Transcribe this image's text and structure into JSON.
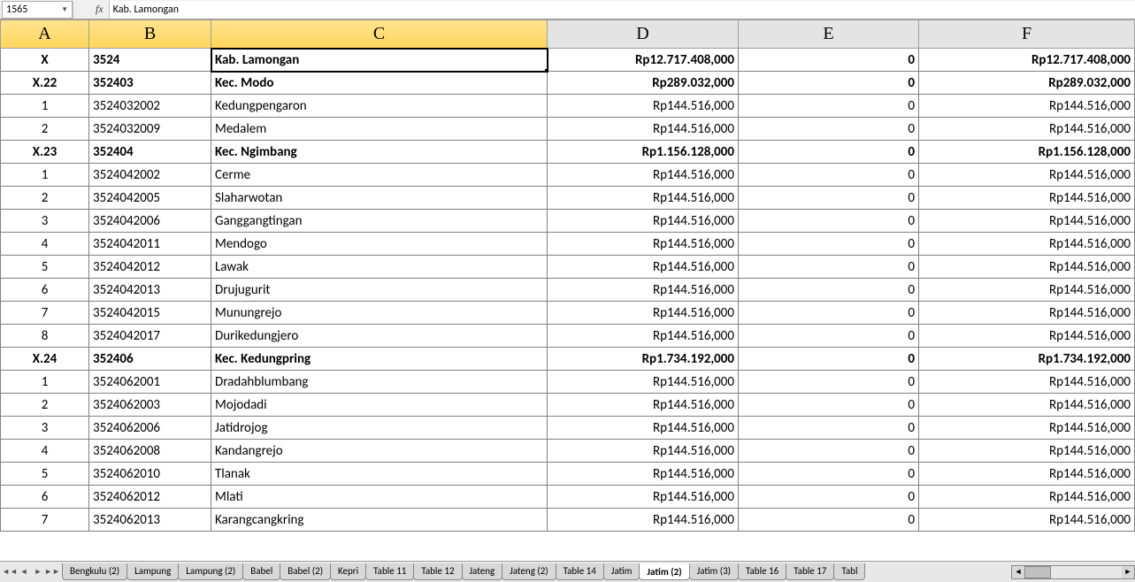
{
  "formula_bar": {
    "name_box": "1565",
    "fx_label": "fx",
    "value": "Kab.  Lamongan"
  },
  "columns": [
    "A",
    "B",
    "C",
    "D",
    "E",
    "F"
  ],
  "col_widths": {
    "A": 100,
    "B": 138,
    "C": 380,
    "D": 216,
    "E": 204,
    "F": 244
  },
  "active_cell": "C1",
  "selected_col": "C",
  "rows": [
    {
      "bold": true,
      "a": "X",
      "b": "3524",
      "c": "Kab.  Lamongan",
      "d": "Rp12.717.408,000",
      "e": "0",
      "f": "Rp12.717.408,000"
    },
    {
      "bold": true,
      "a": "X.22",
      "b": "352403",
      "c": "Kec.  Modo",
      "d": "Rp289.032,000",
      "e": "0",
      "f": "Rp289.032,000"
    },
    {
      "bold": false,
      "a": "1",
      "b": "3524032002",
      "c": "Kedungpengaron",
      "d": "Rp144.516,000",
      "e": "0",
      "f": "Rp144.516,000"
    },
    {
      "bold": false,
      "a": "2",
      "b": "3524032009",
      "c": "Medalem",
      "d": "Rp144.516,000",
      "e": "0",
      "f": "Rp144.516,000"
    },
    {
      "bold": true,
      "a": "X.23",
      "b": "352404",
      "c": "Kec.  Ngimbang",
      "d": "Rp1.156.128,000",
      "e": "0",
      "f": "Rp1.156.128,000"
    },
    {
      "bold": false,
      "a": "1",
      "b": "3524042002",
      "c": "Cerme",
      "d": "Rp144.516,000",
      "e": "0",
      "f": "Rp144.516,000"
    },
    {
      "bold": false,
      "a": "2",
      "b": "3524042005",
      "c": "Slaharwotan",
      "d": "Rp144.516,000",
      "e": "0",
      "f": "Rp144.516,000"
    },
    {
      "bold": false,
      "a": "3",
      "b": "3524042006",
      "c": "Ganggangtingan",
      "d": "Rp144.516,000",
      "e": "0",
      "f": "Rp144.516,000"
    },
    {
      "bold": false,
      "a": "4",
      "b": "3524042011",
      "c": "Mendogo",
      "d": "Rp144.516,000",
      "e": "0",
      "f": "Rp144.516,000"
    },
    {
      "bold": false,
      "a": "5",
      "b": "3524042012",
      "c": "Lawak",
      "d": "Rp144.516,000",
      "e": "0",
      "f": "Rp144.516,000"
    },
    {
      "bold": false,
      "a": "6",
      "b": "3524042013",
      "c": "Drujugurit",
      "d": "Rp144.516,000",
      "e": "0",
      "f": "Rp144.516,000"
    },
    {
      "bold": false,
      "a": "7",
      "b": "3524042015",
      "c": "Munungrejo",
      "d": "Rp144.516,000",
      "e": "0",
      "f": "Rp144.516,000"
    },
    {
      "bold": false,
      "a": "8",
      "b": "3524042017",
      "c": "Durikedungjero",
      "d": "Rp144.516,000",
      "e": "0",
      "f": "Rp144.516,000"
    },
    {
      "bold": true,
      "a": "X.24",
      "b": "352406",
      "c": "Kec.  Kedungpring",
      "d": "Rp1.734.192,000",
      "e": "0",
      "f": "Rp1.734.192,000"
    },
    {
      "bold": false,
      "a": "1",
      "b": "3524062001",
      "c": "Dradahblumbang",
      "d": "Rp144.516,000",
      "e": "0",
      "f": "Rp144.516,000"
    },
    {
      "bold": false,
      "a": "2",
      "b": "3524062003",
      "c": "Mojodadi",
      "d": "Rp144.516,000",
      "e": "0",
      "f": "Rp144.516,000"
    },
    {
      "bold": false,
      "a": "3",
      "b": "3524062006",
      "c": "Jatidrojog",
      "d": "Rp144.516,000",
      "e": "0",
      "f": "Rp144.516,000"
    },
    {
      "bold": false,
      "a": "4",
      "b": "3524062008",
      "c": "Kandangrejo",
      "d": "Rp144.516,000",
      "e": "0",
      "f": "Rp144.516,000"
    },
    {
      "bold": false,
      "a": "5",
      "b": "3524062010",
      "c": "Tlanak",
      "d": "Rp144.516,000",
      "e": "0",
      "f": "Rp144.516,000"
    },
    {
      "bold": false,
      "a": "6",
      "b": "3524062012",
      "c": "Mlati",
      "d": "Rp144.516,000",
      "e": "0",
      "f": "Rp144.516,000"
    },
    {
      "bold": false,
      "a": "7",
      "b": "3524062013",
      "c": "Karangcangkring",
      "d": "Rp144.516,000",
      "e": "0",
      "f": "Rp144.516,000"
    }
  ],
  "sheet_tabs": [
    {
      "label": "Bengkulu (2)",
      "active": false
    },
    {
      "label": "Lampung",
      "active": false
    },
    {
      "label": "Lampung (2)",
      "active": false
    },
    {
      "label": "Babel",
      "active": false
    },
    {
      "label": "Babel (2)",
      "active": false
    },
    {
      "label": "Kepri",
      "active": false
    },
    {
      "label": "Table 11",
      "active": false
    },
    {
      "label": "Table 12",
      "active": false
    },
    {
      "label": "Jateng",
      "active": false
    },
    {
      "label": "Jateng (2)",
      "active": false
    },
    {
      "label": "Table 14",
      "active": false
    },
    {
      "label": "Jatim",
      "active": false
    },
    {
      "label": "Jatim (2)",
      "active": true
    },
    {
      "label": "Jatim (3)",
      "active": false
    },
    {
      "label": "Table 16",
      "active": false
    },
    {
      "label": "Table 17",
      "active": false
    },
    {
      "label": "Tabl",
      "active": false
    }
  ]
}
